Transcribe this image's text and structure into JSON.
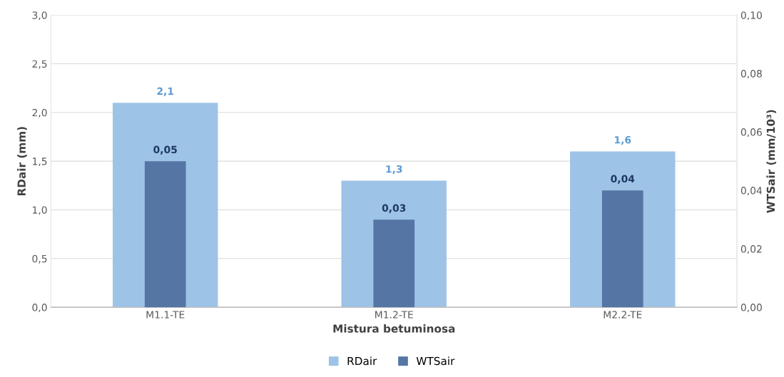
{
  "chart_data": {
    "type": "bar",
    "xlabel": "Mistura betuminosa",
    "ylabel": "RDair (mm)",
    "y2label": "WTSair (mm/10³)",
    "categories": [
      "M1.1-TE",
      "M1.2-TE",
      "M2.2-TE"
    ],
    "series": [
      {
        "name": "RDair",
        "color": "#9dc3e6",
        "values": [
          2.1,
          1.3,
          1.6
        ],
        "value_labels": [
          "2,1",
          "1,3",
          "1,6"
        ]
      },
      {
        "name": "WTSair",
        "color": "#5575a5",
        "values": [
          0.05,
          0.03,
          0.04
        ],
        "value_labels": [
          "0,05",
          "0,03",
          "0,04"
        ],
        "axis": "y2"
      }
    ],
    "ylim": [
      0,
      3
    ],
    "yticks": [
      {
        "value": 0,
        "label": "0,0"
      },
      {
        "value": 0.5,
        "label": "0,5"
      },
      {
        "value": 1,
        "label": "1,0"
      },
      {
        "value": 1.5,
        "label": "1,5"
      },
      {
        "value": 2,
        "label": "2,0"
      },
      {
        "value": 2.5,
        "label": "2,5"
      },
      {
        "value": 3,
        "label": "3,0"
      }
    ],
    "y2lim": [
      0,
      0.1
    ],
    "y2ticks": [
      {
        "value": 0,
        "label": "0,00"
      },
      {
        "value": 0.02,
        "label": "0,02"
      },
      {
        "value": 0.04,
        "label": "0,04"
      },
      {
        "value": 0.06,
        "label": "0,06"
      },
      {
        "value": 0.08,
        "label": "0,08"
      },
      {
        "value": 0.1,
        "label": "0,10"
      }
    ],
    "grid": "y",
    "legend": "bottom"
  }
}
